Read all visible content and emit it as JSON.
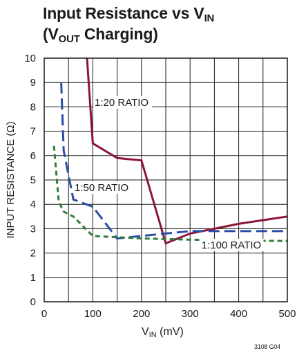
{
  "header": {
    "title_line1": "Input Resistance vs V",
    "title_line1_sub": "IN",
    "title_line2_pre": "(V",
    "title_line2_sub": "OUT",
    "title_line2_post": " Charging)"
  },
  "axes": {
    "xlabel_main": "V",
    "xlabel_sub": "IN",
    "xlabel_unit": " (mV)",
    "ylabel": "INPUT RESISTANCE (Ω)"
  },
  "figure_code": "3108 G04",
  "chart_data": {
    "type": "line",
    "title": "Input Resistance vs VIN (VOUT Charging)",
    "xlabel": "VIN (mV)",
    "ylabel": "INPUT RESISTANCE (Ω)",
    "xlim": [
      0,
      500
    ],
    "ylim": [
      0,
      10
    ],
    "xticks": [
      0,
      100,
      200,
      300,
      400,
      500
    ],
    "yticks": [
      0,
      1,
      2,
      3,
      4,
      5,
      6,
      7,
      8,
      9,
      10
    ],
    "grid": true,
    "series": [
      {
        "name": "1:20 RATIO",
        "color": "#8b1538",
        "dash": "solid",
        "x": [
          88,
          100,
          150,
          200,
          250,
          300,
          400,
          500
        ],
        "y": [
          10,
          6.5,
          5.9,
          5.8,
          2.4,
          2.8,
          3.2,
          3.5
        ]
      },
      {
        "name": "1:50 RATIO",
        "color": "#2a4ea8",
        "dash": "long-dash",
        "x": [
          35,
          40,
          60,
          100,
          150,
          250,
          300,
          400,
          500
        ],
        "y": [
          9.0,
          6.2,
          4.2,
          3.9,
          2.6,
          2.8,
          2.9,
          2.9,
          2.9
        ]
      },
      {
        "name": "1:100 RATIO",
        "color": "#2e7d3a",
        "dash": "short-dash",
        "x": [
          20,
          30,
          40,
          60,
          100,
          200,
          300,
          400,
          500
        ],
        "y": [
          6.4,
          4.1,
          3.7,
          3.5,
          2.7,
          2.6,
          2.55,
          2.5,
          2.5
        ]
      }
    ]
  }
}
